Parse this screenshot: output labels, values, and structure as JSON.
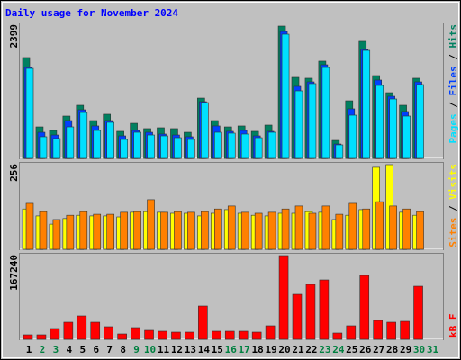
{
  "chart_data": [
    {
      "type": "bar",
      "title": "Daily usage for November 2024",
      "ylim": [
        0,
        2399
      ],
      "yticks": [
        2399
      ],
      "legend_separator": " / ",
      "legend_position": "right",
      "series": [
        {
          "name": "Pages",
          "color": "#00e0ff",
          "values": [
            1632,
            392,
            359,
            571,
            832,
            506,
            653,
            343,
            473,
            424,
            408,
            375,
            343,
            1012,
            473,
            457,
            441,
            375,
            473,
            2252,
            1224,
            1355,
            1648,
            245,
            783,
            1958,
            1322,
            1077,
            767,
            1338,
            0
          ]
        },
        {
          "name": "Files",
          "color": "#0040ff",
          "values": [
            1650,
            473,
            424,
            685,
            881,
            588,
            685,
            408,
            506,
            473,
            441,
            424,
            392,
            1028,
            588,
            490,
            506,
            408,
            490,
            2301,
            1306,
            1387,
            1697,
            261,
            898,
            1975,
            1420,
            1126,
            849,
            1387,
            0
          ]
        },
        {
          "name": "Hits",
          "color": "#008060",
          "values": [
            1828,
            571,
            506,
            767,
            963,
            685,
            800,
            490,
            636,
            539,
            555,
            539,
            473,
            1093,
            685,
            571,
            588,
            490,
            604,
            2399,
            1469,
            1453,
            1763,
            326,
            1044,
            2122,
            1501,
            1191,
            963,
            1453,
            0
          ]
        }
      ]
    },
    {
      "type": "bar",
      "ylim": [
        0,
        256
      ],
      "yticks": [
        256
      ],
      "legend_separator": " / ",
      "legend_position": "right",
      "series": [
        {
          "name": "Sites",
          "color": "#ff8000",
          "values": [
            139,
            114,
            90,
            103,
            114,
            106,
            106,
            112,
            114,
            150,
            112,
            114,
            112,
            114,
            122,
            131,
            112,
            109,
            112,
            122,
            131,
            109,
            131,
            106,
            139,
            122,
            144,
            131,
            122,
            114,
            0
          ]
        },
        {
          "name": "Visits",
          "color": "#ffff00",
          "values": [
            122,
            101,
            76,
            93,
            103,
            101,
            101,
            98,
            112,
            114,
            112,
            109,
            109,
            101,
            109,
            120,
            109,
            103,
            101,
            109,
            109,
            114,
            112,
            90,
            103,
            120,
            248,
            256,
            112,
            103,
            0
          ]
        }
      ]
    },
    {
      "type": "bar",
      "ylim": [
        0,
        167240
      ],
      "yticks": [
        167240
      ],
      "legend_separator": " / ",
      "legend_position": "right",
      "categories": [
        "1",
        "2",
        "3",
        "4",
        "5",
        "6",
        "7",
        "8",
        "9",
        "10",
        "11",
        "12",
        "13",
        "14",
        "15",
        "16",
        "17",
        "18",
        "19",
        "20",
        "21",
        "22",
        "23",
        "24",
        "25",
        "26",
        "27",
        "28",
        "29",
        "30",
        "31"
      ],
      "category_colors": [
        "#000000",
        "#008040",
        "#008040",
        "#000000",
        "#000000",
        "#000000",
        "#000000",
        "#000000",
        "#008040",
        "#008040",
        "#000000",
        "#000000",
        "#000000",
        "#000000",
        "#000000",
        "#008040",
        "#008040",
        "#000000",
        "#000000",
        "#000000",
        "#000000",
        "#000000",
        "#008040",
        "#008040",
        "#000000",
        "#000000",
        "#000000",
        "#000000",
        "#000000",
        "#008040",
        "#008040"
      ],
      "series": [
        {
          "name": "kB F",
          "color": "#ff0000",
          "values": [
            8990,
            8990,
            21577,
            34162,
            46748,
            34162,
            25172,
            10788,
            23374,
            17980,
            16182,
            14384,
            14384,
            66526,
            16182,
            16182,
            16182,
            14384,
            26970,
            167240,
            89900,
            109678,
            118668,
            12586,
            26970,
            127658,
            37758,
            34162,
            35960,
            106082,
            0
          ]
        }
      ]
    }
  ]
}
